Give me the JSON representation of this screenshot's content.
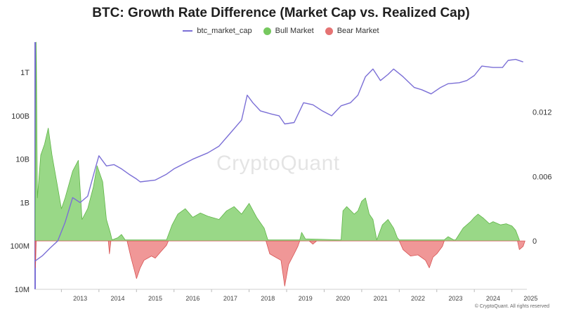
{
  "title": "BTC: Growth Rate Difference (Market Cap vs. Realized Cap)",
  "legend": {
    "series_line": "btc_market_cap",
    "bull": "Bull Market",
    "bear": "Bear Market"
  },
  "watermark": "CryptoQuant",
  "copyright": "© CryptoQuant. All rights reserved",
  "colors": {
    "market_cap": "#7b6fd6",
    "bull_fill": "#8ed47a",
    "bull_stroke": "#5fb548",
    "bear_fill": "#ee8c8c",
    "bear_stroke": "#d65454",
    "left_axis": "#7b6fd6"
  },
  "chart_data": {
    "type": "line",
    "title": "BTC: Growth Rate Difference (Market Cap vs. Realized Cap)",
    "x_tick_labels": [
      "2013",
      "2014",
      "2015",
      "2016",
      "2017",
      "2018",
      "2019",
      "2020",
      "2021",
      "2022",
      "2023",
      "2024",
      "2025"
    ],
    "x_range": [
      2012.3,
      2025.4
    ],
    "y_left": {
      "scale": "log",
      "range": [
        10000000,
        5000000000000
      ],
      "tick_labels": [
        "10M",
        "100M",
        "1B",
        "10B",
        "100B",
        "1T"
      ],
      "tick_values": [
        10000000,
        100000000,
        1000000000,
        10000000000,
        100000000000,
        1000000000000
      ]
    },
    "y_right": {
      "range": [
        -0.0045,
        0.0185
      ],
      "tick_labels": [
        "0",
        "0.006",
        "0.012"
      ],
      "tick_values": [
        0,
        0.006,
        0.012
      ]
    },
    "series": [
      {
        "name": "btc_market_cap",
        "axis": "left",
        "points": [
          [
            2012.3,
            45000000
          ],
          [
            2012.5,
            60000000
          ],
          [
            2012.7,
            90000000
          ],
          [
            2012.9,
            130000000
          ],
          [
            2013.1,
            350000000
          ],
          [
            2013.3,
            1300000000
          ],
          [
            2013.5,
            1000000000
          ],
          [
            2013.7,
            1400000000
          ],
          [
            2013.9,
            6000000000
          ],
          [
            2014.0,
            12000000000
          ],
          [
            2014.2,
            7000000000
          ],
          [
            2014.4,
            7500000000
          ],
          [
            2014.6,
            6000000000
          ],
          [
            2014.8,
            4500000000
          ],
          [
            2015.0,
            3500000000
          ],
          [
            2015.1,
            3000000000
          ],
          [
            2015.5,
            3300000000
          ],
          [
            2015.8,
            4500000000
          ],
          [
            2016.0,
            6000000000
          ],
          [
            2016.5,
            10000000000
          ],
          [
            2016.9,
            14000000000
          ],
          [
            2017.2,
            20000000000
          ],
          [
            2017.5,
            40000000000
          ],
          [
            2017.8,
            80000000000
          ],
          [
            2017.95,
            300000000000
          ],
          [
            2018.1,
            200000000000
          ],
          [
            2018.3,
            130000000000
          ],
          [
            2018.6,
            110000000000
          ],
          [
            2018.8,
            100000000000
          ],
          [
            2018.95,
            65000000000
          ],
          [
            2019.2,
            70000000000
          ],
          [
            2019.45,
            200000000000
          ],
          [
            2019.7,
            180000000000
          ],
          [
            2019.95,
            130000000000
          ],
          [
            2020.2,
            100000000000
          ],
          [
            2020.45,
            170000000000
          ],
          [
            2020.7,
            200000000000
          ],
          [
            2020.9,
            300000000000
          ],
          [
            2021.1,
            800000000000
          ],
          [
            2021.3,
            1200000000000
          ],
          [
            2021.5,
            650000000000
          ],
          [
            2021.7,
            900000000000
          ],
          [
            2021.85,
            1200000000000
          ],
          [
            2022.1,
            800000000000
          ],
          [
            2022.4,
            450000000000
          ],
          [
            2022.6,
            400000000000
          ],
          [
            2022.85,
            320000000000
          ],
          [
            2023.1,
            450000000000
          ],
          [
            2023.3,
            550000000000
          ],
          [
            2023.6,
            580000000000
          ],
          [
            2023.8,
            650000000000
          ],
          [
            2024.0,
            850000000000
          ],
          [
            2024.2,
            1400000000000
          ],
          [
            2024.5,
            1300000000000
          ],
          [
            2024.75,
            1300000000000
          ],
          [
            2024.9,
            1900000000000
          ],
          [
            2025.1,
            2000000000000
          ],
          [
            2025.3,
            1750000000000
          ]
        ]
      },
      {
        "name": "Bull Market",
        "axis": "right",
        "points": [
          [
            2012.3,
            0.002
          ],
          [
            2012.33,
            0.0185
          ],
          [
            2012.36,
            0.004
          ],
          [
            2012.45,
            0.008
          ],
          [
            2012.55,
            0.009
          ],
          [
            2012.65,
            0.0105
          ],
          [
            2012.75,
            0.008
          ],
          [
            2012.9,
            0.005
          ],
          [
            2013.0,
            0.003
          ],
          [
            2013.1,
            0.004
          ],
          [
            2013.3,
            0.0065
          ],
          [
            2013.45,
            0.0075
          ],
          [
            2013.55,
            0.002
          ],
          [
            2013.7,
            0.003
          ],
          [
            2013.85,
            0.005
          ],
          [
            2013.95,
            0.007
          ],
          [
            2014.1,
            0.0055
          ],
          [
            2014.2,
            0.002
          ],
          [
            2014.3,
            0.0008
          ],
          [
            2014.35,
            0.0001
          ],
          [
            2014.5,
            0.0003
          ],
          [
            2014.6,
            0.0006
          ],
          [
            2014.7,
            0.0001
          ],
          [
            2015.8,
            0.0001
          ],
          [
            2015.95,
            0.0015
          ],
          [
            2016.1,
            0.0025
          ],
          [
            2016.3,
            0.003
          ],
          [
            2016.5,
            0.0022
          ],
          [
            2016.7,
            0.0026
          ],
          [
            2016.9,
            0.0023
          ],
          [
            2017.2,
            0.002
          ],
          [
            2017.4,
            0.0028
          ],
          [
            2017.6,
            0.0032
          ],
          [
            2017.8,
            0.0025
          ],
          [
            2018.0,
            0.0035
          ],
          [
            2018.2,
            0.0022
          ],
          [
            2018.4,
            0.0012
          ],
          [
            2018.5,
            0.0001
          ],
          [
            2019.35,
            0.0001
          ],
          [
            2019.4,
            0.0008
          ],
          [
            2019.5,
            0.0002
          ],
          [
            2020.45,
            0.0001
          ],
          [
            2020.5,
            0.0028
          ],
          [
            2020.6,
            0.0032
          ],
          [
            2020.8,
            0.0025
          ],
          [
            2020.9,
            0.0028
          ],
          [
            2021.0,
            0.0037
          ],
          [
            2021.1,
            0.004
          ],
          [
            2021.2,
            0.0025
          ],
          [
            2021.3,
            0.002
          ],
          [
            2021.4,
            0.0001
          ],
          [
            2021.55,
            0.0015
          ],
          [
            2021.7,
            0.002
          ],
          [
            2021.85,
            0.0012
          ],
          [
            2021.95,
            0.0003
          ],
          [
            2022.0,
            0.0001
          ],
          [
            2023.2,
            0.0001
          ],
          [
            2023.3,
            0.0004
          ],
          [
            2023.45,
            0.0001
          ],
          [
            2023.5,
            0.0001
          ],
          [
            2023.7,
            0.0012
          ],
          [
            2023.9,
            0.0018
          ],
          [
            2024.0,
            0.0022
          ],
          [
            2024.1,
            0.0025
          ],
          [
            2024.25,
            0.0021
          ],
          [
            2024.4,
            0.0016
          ],
          [
            2024.5,
            0.0018
          ],
          [
            2024.7,
            0.0015
          ],
          [
            2024.85,
            0.0016
          ],
          [
            2025.0,
            0.0014
          ],
          [
            2025.1,
            0.001
          ],
          [
            2025.2,
            0.0001
          ]
        ]
      },
      {
        "name": "Bear Market",
        "axis": "right",
        "points": [
          [
            2012.3,
            0
          ],
          [
            2012.31,
            -0.0025
          ],
          [
            2012.33,
            0
          ],
          [
            2014.25,
            0
          ],
          [
            2014.28,
            -0.0012
          ],
          [
            2014.32,
            0
          ],
          [
            2014.75,
            0
          ],
          [
            2014.85,
            -0.0015
          ],
          [
            2014.95,
            -0.0028
          ],
          [
            2015.0,
            -0.0035
          ],
          [
            2015.1,
            -0.0025
          ],
          [
            2015.2,
            -0.0018
          ],
          [
            2015.4,
            -0.0014
          ],
          [
            2015.5,
            -0.0016
          ],
          [
            2015.65,
            -0.001
          ],
          [
            2015.8,
            -0.0004
          ],
          [
            2015.85,
            0
          ],
          [
            2018.45,
            0
          ],
          [
            2018.55,
            -0.0012
          ],
          [
            2018.7,
            -0.0015
          ],
          [
            2018.85,
            -0.0018
          ],
          [
            2018.95,
            -0.0042
          ],
          [
            2019.05,
            -0.0022
          ],
          [
            2019.2,
            -0.0012
          ],
          [
            2019.3,
            -0.0005
          ],
          [
            2019.35,
            0
          ],
          [
            2019.6,
            0
          ],
          [
            2019.7,
            -0.0003
          ],
          [
            2019.8,
            0
          ],
          [
            2022.0,
            0
          ],
          [
            2022.1,
            -0.0008
          ],
          [
            2022.3,
            -0.0014
          ],
          [
            2022.5,
            -0.0013
          ],
          [
            2022.7,
            -0.0018
          ],
          [
            2022.8,
            -0.0025
          ],
          [
            2022.9,
            -0.0015
          ],
          [
            2023.0,
            -0.0012
          ],
          [
            2023.15,
            -0.0005
          ],
          [
            2023.2,
            0
          ],
          [
            2025.15,
            0
          ],
          [
            2025.2,
            -0.0008
          ],
          [
            2025.3,
            -0.0005
          ],
          [
            2025.35,
            0
          ]
        ]
      }
    ],
    "grid": false,
    "legend_position": "top-center"
  }
}
